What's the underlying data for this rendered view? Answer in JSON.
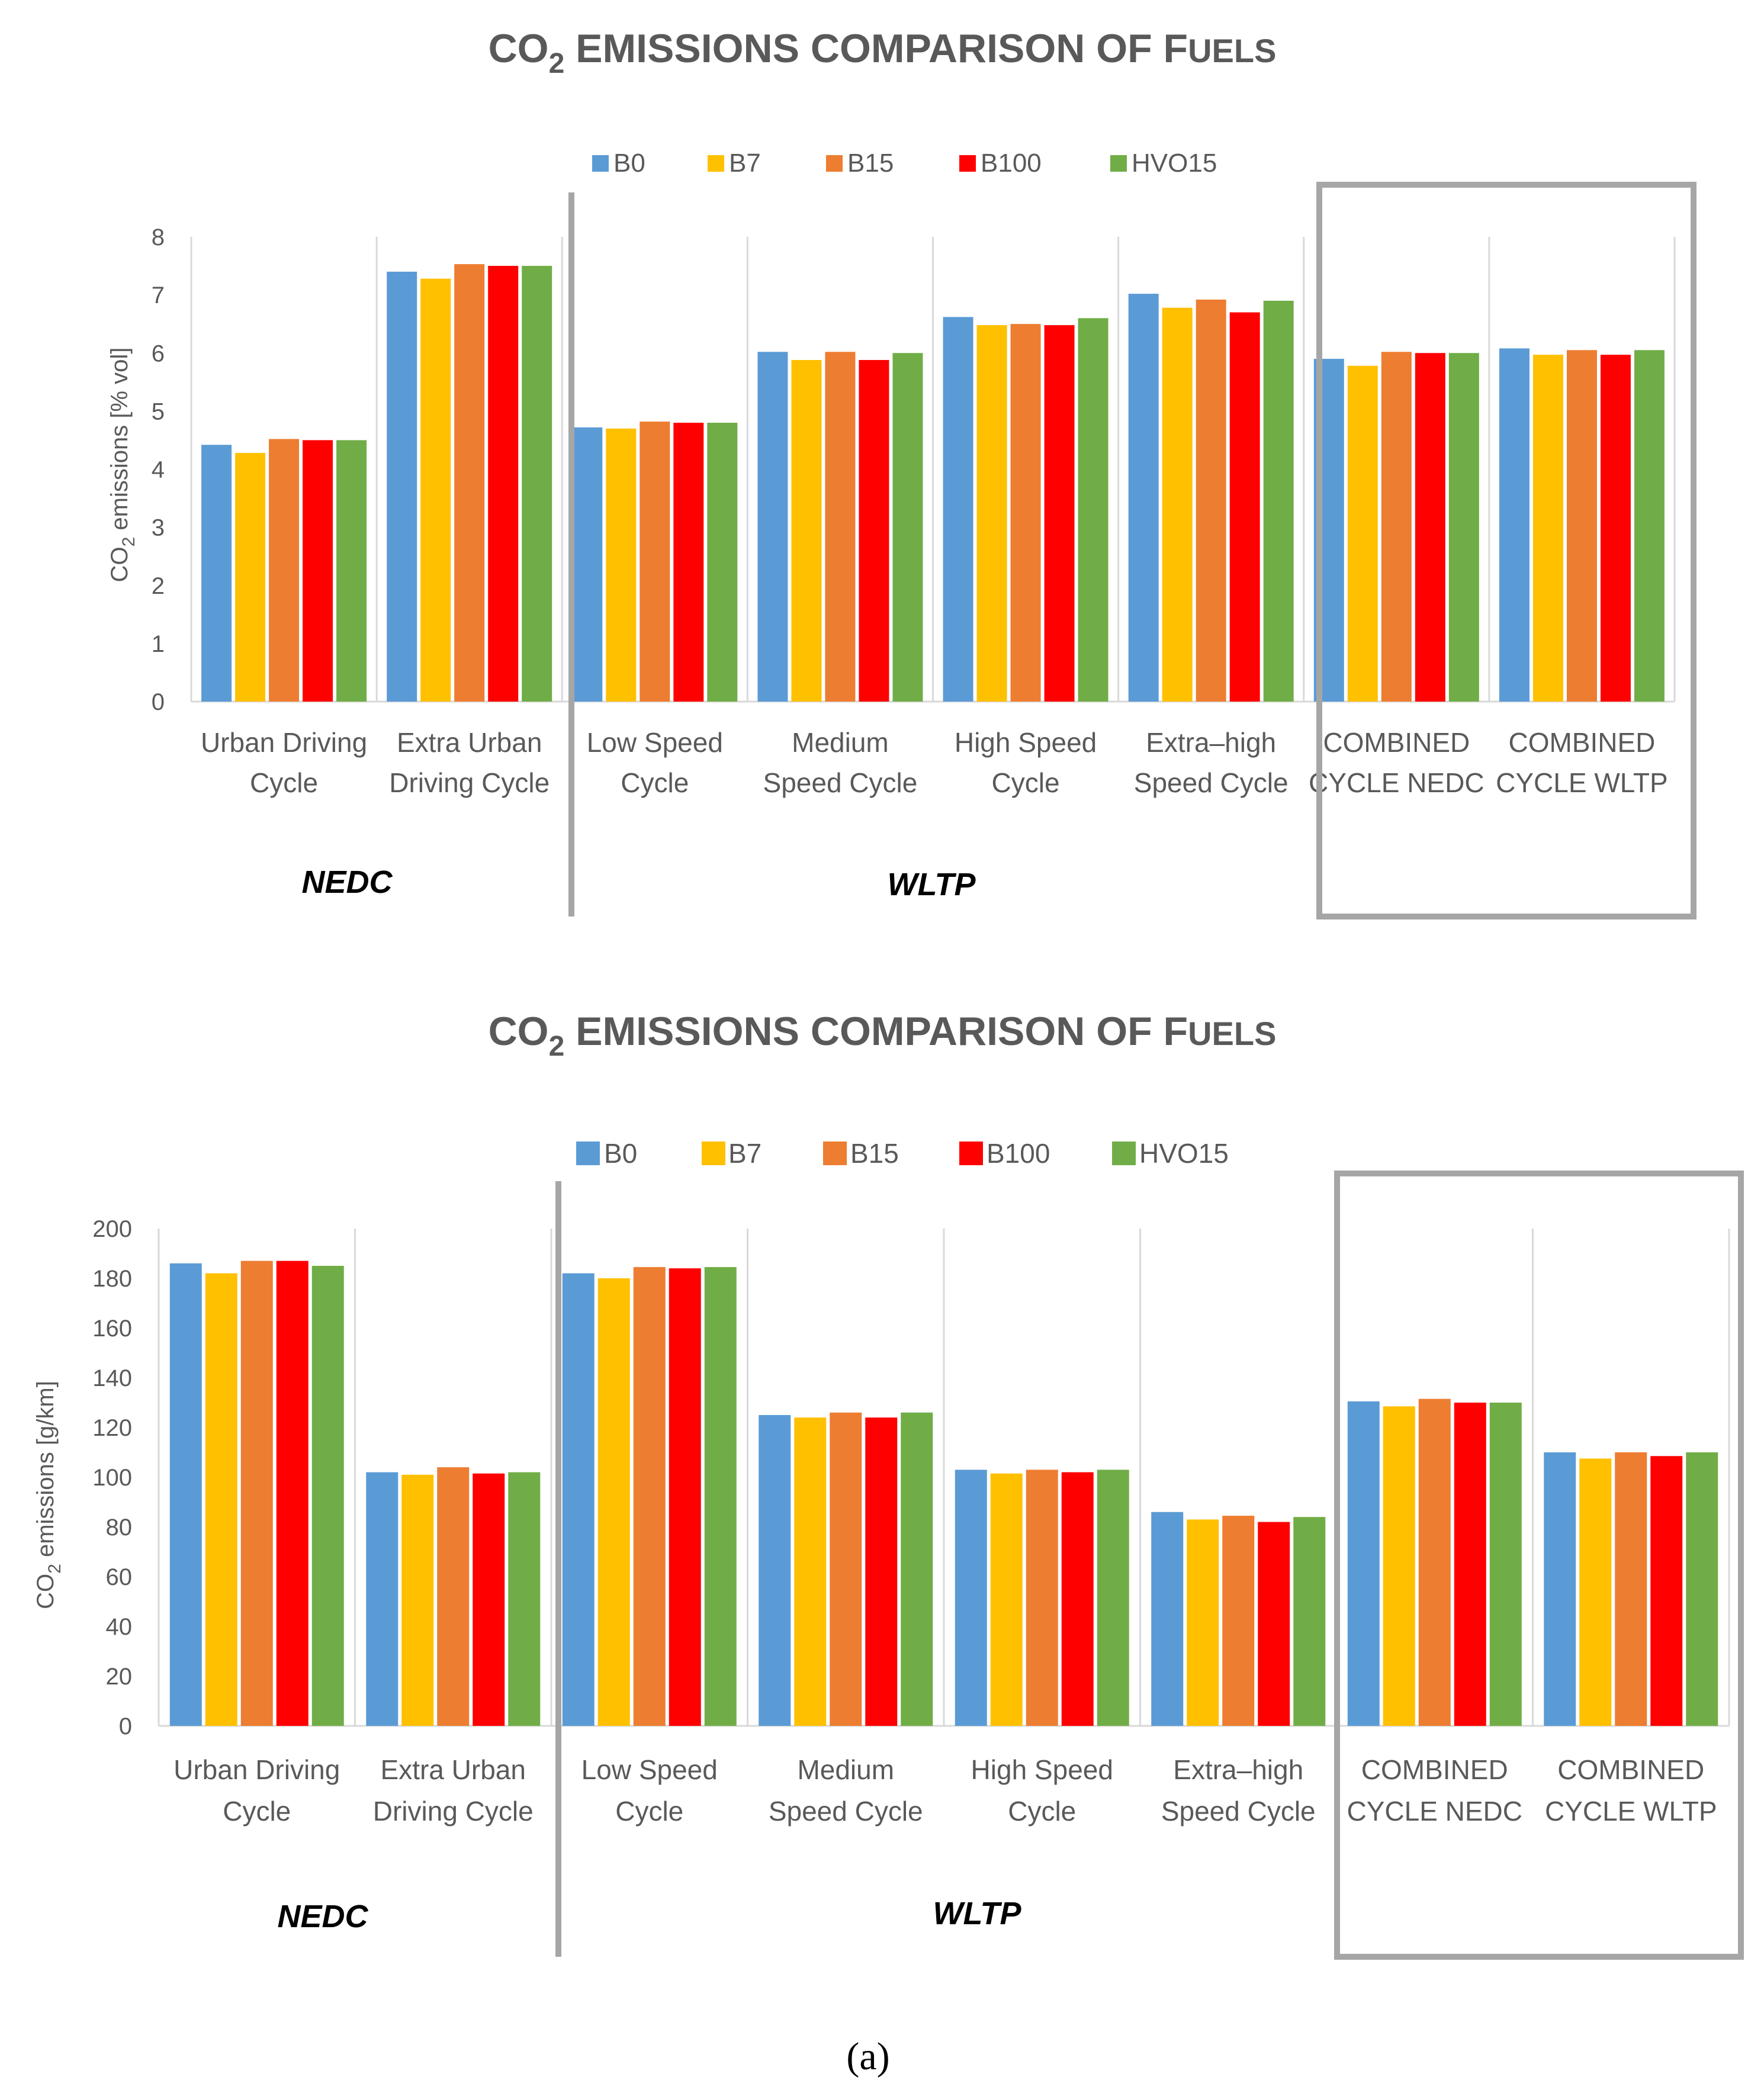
{
  "colors": {
    "B0": "#5b9bd5",
    "B7": "#ffc000",
    "B15": "#ed7d31",
    "B100": "#ff0000",
    "HVO15": "#70ad47",
    "axis": "#d9d9d9",
    "frame": "#a6a6a6",
    "text": "#595959"
  },
  "panel_label": "(a)",
  "chart_data": [
    {
      "type": "bar",
      "title": "CO2 emissions comparison of Fuels",
      "title_parts": {
        "prefix": "CO",
        "sub": "2",
        "rest": " EMISSIONS COMPARISON OF F",
        "rest_small": "UELS"
      },
      "ylabel": {
        "prefix": "CO",
        "sub": "2",
        "rest": " emissions [% vol]"
      },
      "ylim": [
        0,
        8
      ],
      "yticks": [
        "0",
        "1",
        "2",
        "3",
        "4",
        "5",
        "6",
        "7",
        "8"
      ],
      "categories": [
        [
          "Urban Driving",
          "Cycle"
        ],
        [
          "Extra Urban",
          "Driving Cycle"
        ],
        [
          "Low Speed",
          "Cycle"
        ],
        [
          "Medium",
          "Speed Cycle"
        ],
        [
          "High Speed",
          "Cycle"
        ],
        [
          "Extra–high",
          "Speed Cycle"
        ],
        [
          "COMBINED",
          "CYCLE NEDC"
        ],
        [
          "COMBINED",
          "CYCLE WLTP"
        ]
      ],
      "series": [
        {
          "name": "B0",
          "values": [
            4.42,
            7.4,
            4.72,
            6.02,
            6.62,
            7.02,
            5.9,
            6.08
          ]
        },
        {
          "name": "B7",
          "values": [
            4.28,
            7.28,
            4.7,
            5.88,
            6.48,
            6.78,
            5.78,
            5.97
          ]
        },
        {
          "name": "B15",
          "values": [
            4.52,
            7.53,
            4.82,
            6.02,
            6.5,
            6.92,
            6.02,
            6.05
          ]
        },
        {
          "name": "B100",
          "values": [
            4.5,
            7.5,
            4.8,
            5.88,
            6.48,
            6.7,
            6.0,
            5.97
          ]
        },
        {
          "name": "HVO15",
          "values": [
            4.5,
            7.5,
            4.8,
            6.0,
            6.6,
            6.9,
            6.0,
            6.05
          ]
        }
      ],
      "groups": [
        "NEDC",
        "WLTP"
      ],
      "legend": [
        "B0",
        "B7",
        "B15",
        "B100",
        "HVO15"
      ]
    },
    {
      "type": "bar",
      "title": "CO2 emissions comparison of Fuels",
      "title_parts": {
        "prefix": "CO",
        "sub": "2",
        "rest": " EMISSIONS COMPARISON OF F",
        "rest_small": "UELS"
      },
      "ylabel": {
        "prefix": "CO",
        "sub": "2",
        "rest": " emissions [g/km]"
      },
      "ylim": [
        0,
        200
      ],
      "yticks": [
        "0",
        "20",
        "40",
        "60",
        "80",
        "100",
        "120",
        "140",
        "160",
        "180",
        "200"
      ],
      "categories": [
        [
          "Urban Driving",
          "Cycle"
        ],
        [
          "Extra Urban",
          "Driving Cycle"
        ],
        [
          "Low Speed",
          "Cycle"
        ],
        [
          "Medium",
          "Speed Cycle"
        ],
        [
          "High Speed",
          "Cycle"
        ],
        [
          "Extra–high",
          "Speed Cycle"
        ],
        [
          "COMBINED",
          "CYCLE NEDC"
        ],
        [
          "COMBINED",
          "CYCLE WLTP"
        ]
      ],
      "series": [
        {
          "name": "B0",
          "values": [
            186,
            102,
            182,
            125,
            103,
            86,
            130.5,
            110
          ]
        },
        {
          "name": "B7",
          "values": [
            182,
            101,
            180,
            124,
            101.5,
            83,
            128.5,
            107.5
          ]
        },
        {
          "name": "B15",
          "values": [
            187,
            104,
            184.5,
            126,
            103,
            84.5,
            131.5,
            110
          ]
        },
        {
          "name": "B100",
          "values": [
            187,
            101.5,
            184,
            124,
            102,
            82,
            130,
            108.5
          ]
        },
        {
          "name": "HVO15",
          "values": [
            185,
            102,
            184.5,
            126,
            103,
            84,
            130,
            110
          ]
        }
      ],
      "groups": [
        "NEDC",
        "WLTP"
      ],
      "legend": [
        "B0",
        "B7",
        "B15",
        "B100",
        "HVO15"
      ]
    }
  ]
}
